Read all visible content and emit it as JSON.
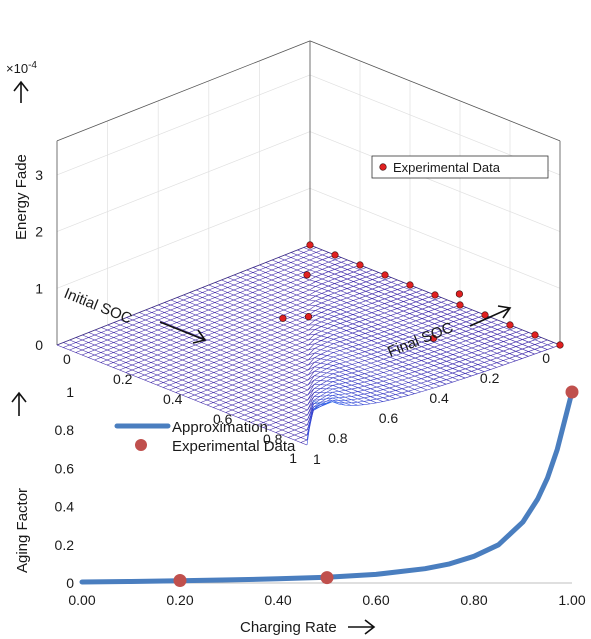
{
  "chart_data": [
    {
      "type": "surface",
      "zlabel": "Energy Fade",
      "z_exponent_label": "×10",
      "z_exponent_power": "-4",
      "xlabel": "Initial SOC",
      "ylabel": "Final SOC",
      "xlim": [
        0,
        1
      ],
      "ylim": [
        0,
        1
      ],
      "zlim": [
        0,
        3
      ],
      "x_ticks": [
        "0",
        "0.2",
        "0.4",
        "0.6",
        "0.8",
        "1"
      ],
      "y_ticks": [
        "0",
        "0.2",
        "0.4",
        "0.6",
        "0.8",
        "1"
      ],
      "z_ticks": [
        "0",
        "1",
        "2",
        "3"
      ],
      "surface": "z ≈ 0.36·((1−x)^-0.42 − 1) for y > x, 0 for y ≤ x (visual approximation of fade surface)",
      "legend": {
        "label": "Experimental Data",
        "position": "right"
      },
      "experimental_points": [
        {
          "x": 0.0,
          "y": 0.0,
          "z": 0.0
        },
        {
          "x": 0.0,
          "y": 0.1,
          "z": 0.0
        },
        {
          "x": 0.0,
          "y": 0.2,
          "z": 0.0
        },
        {
          "x": 0.0,
          "y": 0.3,
          "z": 0.0
        },
        {
          "x": 0.0,
          "y": 0.4,
          "z": 0.0
        },
        {
          "x": 0.0,
          "y": 0.5,
          "z": 0.0
        },
        {
          "x": 0.0,
          "y": 0.6,
          "z": 0.0
        },
        {
          "x": 0.0,
          "y": 0.7,
          "z": 0.0
        },
        {
          "x": 0.0,
          "y": 0.8,
          "z": 0.0
        },
        {
          "x": 0.0,
          "y": 0.9,
          "z": 0.0
        },
        {
          "x": 0.0,
          "y": 1.0,
          "z": 0.0
        },
        {
          "x": 0.2,
          "y": 0.8,
          "z": 0.9
        },
        {
          "x": 0.5,
          "y": 0.5,
          "z": 0.5
        },
        {
          "x": 0.5,
          "y": 1.0,
          "z": 1.0
        },
        {
          "x": 0.7,
          "y": 0.6,
          "z": 1.0
        },
        {
          "x": 1.0,
          "y": 1.0,
          "z": 3.0
        }
      ]
    },
    {
      "type": "line",
      "xlabel": "Charging Rate",
      "ylabel": "Aging Factor",
      "xlim": [
        0,
        1
      ],
      "ylim": [
        0,
        1
      ],
      "x_ticks": [
        "0.00",
        "0.20",
        "0.40",
        "0.60",
        "0.80",
        "1.00"
      ],
      "y_ticks": [
        "0",
        "0.2",
        "0.4",
        "0.6",
        "0.8",
        "1"
      ],
      "series": [
        {
          "name": "Approximation",
          "kind": "line",
          "color": "#4a7ebf",
          "x": [
            0.0,
            0.1,
            0.2,
            0.3,
            0.4,
            0.5,
            0.6,
            0.7,
            0.75,
            0.8,
            0.85,
            0.9,
            0.93,
            0.95,
            0.97,
            0.99,
            1.0
          ],
          "y": [
            0.005,
            0.008,
            0.012,
            0.016,
            0.022,
            0.03,
            0.045,
            0.075,
            0.1,
            0.14,
            0.2,
            0.32,
            0.44,
            0.55,
            0.7,
            0.9,
            1.0
          ]
        },
        {
          "name": "Experimental Data",
          "kind": "scatter",
          "color": "#c0504d",
          "x": [
            0.2,
            0.5,
            1.0
          ],
          "y": [
            0.013,
            0.028,
            1.0
          ]
        }
      ],
      "legend_position": "top-left"
    }
  ]
}
